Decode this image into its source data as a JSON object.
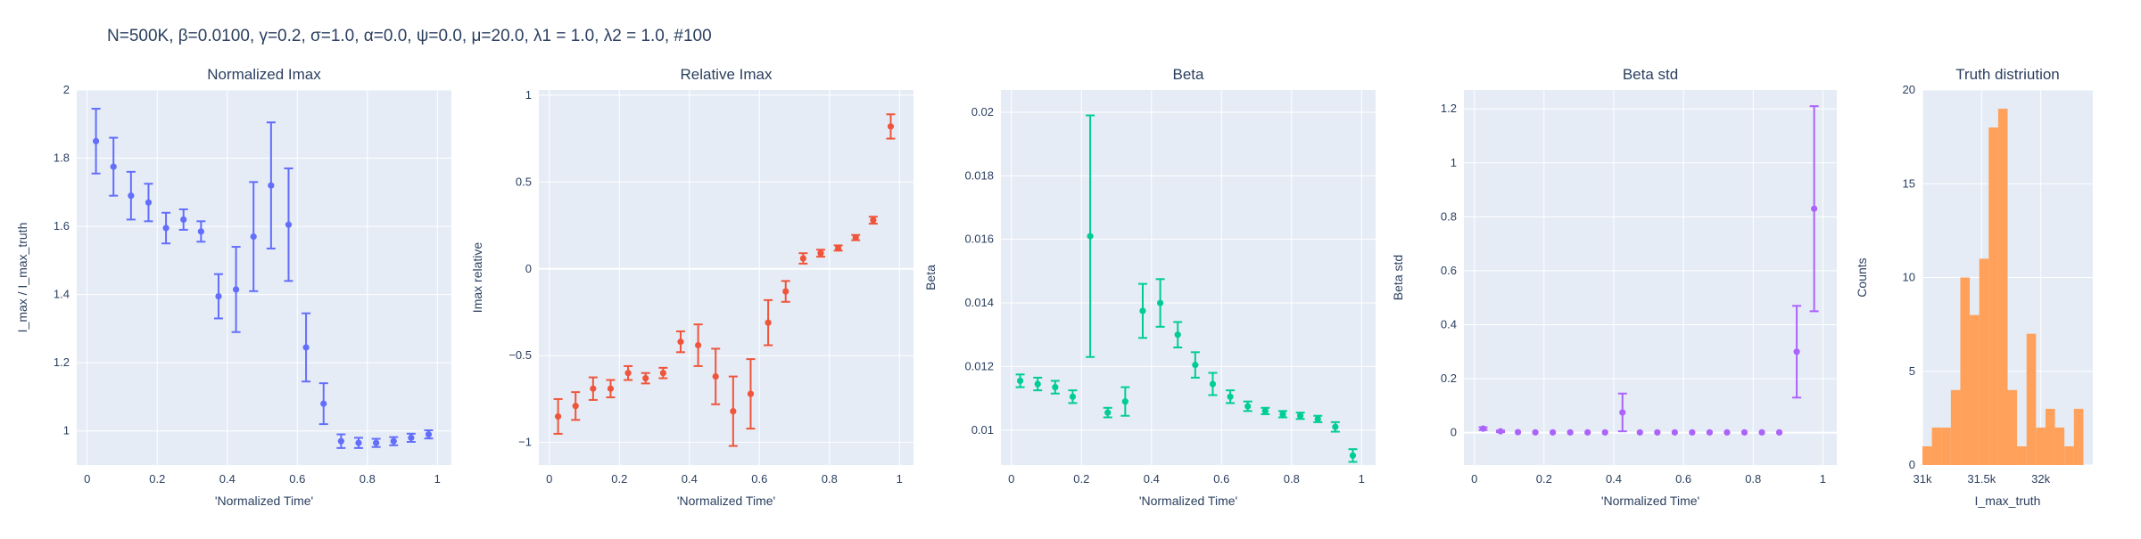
{
  "page": {
    "title": "N=500K, β=0.0100, γ=0.2, σ=1.0,  α=0.0, ψ=0.0, μ=20.0, λ1 = 1.0, λ2 = 1.0, #100"
  },
  "style": {
    "plot_bg": "#E5ECF6",
    "grid": "#ffffff",
    "text": "#2a3f5f",
    "colors": [
      "#636EFA",
      "#EF553B",
      "#00CC96",
      "#AB63FA",
      "#FFA15A"
    ]
  },
  "chart_data": [
    {
      "type": "scatter",
      "title": "Normalized Imax",
      "xlabel": "'Normalized Time'",
      "ylabel": "I_max / I_max_truth",
      "xlim": [
        -0.03,
        1.04
      ],
      "ylim": [
        0.9,
        2.0
      ],
      "xticks": [
        0,
        0.2,
        0.4,
        0.6,
        0.8,
        1
      ],
      "xtick_labels": [
        "0",
        "0.2",
        "0.4",
        "0.6",
        "0.8",
        "1"
      ],
      "yticks": [
        1,
        1.2,
        1.4,
        1.6,
        1.8,
        2
      ],
      "ytick_labels": [
        "1",
        "1.2",
        "1.4",
        "1.6",
        "1.8",
        "2"
      ],
      "series": [
        {
          "x": [
            0.025,
            0.075,
            0.125,
            0.175,
            0.225,
            0.275,
            0.325,
            0.375,
            0.425,
            0.475,
            0.525,
            0.575,
            0.625,
            0.675,
            0.725,
            0.775,
            0.825,
            0.875,
            0.925,
            0.975
          ],
          "y": [
            1.85,
            1.775,
            1.69,
            1.67,
            1.595,
            1.62,
            1.585,
            1.395,
            1.415,
            1.57,
            1.72,
            1.605,
            1.245,
            1.08,
            0.97,
            0.965,
            0.965,
            0.97,
            0.98,
            0.99
          ],
          "err": [
            0.095,
            0.085,
            0.07,
            0.055,
            0.045,
            0.03,
            0.03,
            0.065,
            0.125,
            0.16,
            0.185,
            0.165,
            0.1,
            0.06,
            0.02,
            0.015,
            0.012,
            0.012,
            0.012,
            0.012
          ]
        }
      ]
    },
    {
      "type": "scatter",
      "title": "Relative Imax",
      "xlabel": "'Normalized Time'",
      "ylabel": "Imax relative",
      "xlim": [
        -0.03,
        1.04
      ],
      "ylim": [
        -1.13,
        1.03
      ],
      "xticks": [
        0,
        0.2,
        0.4,
        0.6,
        0.8,
        1
      ],
      "xtick_labels": [
        "0",
        "0.2",
        "0.4",
        "0.6",
        "0.8",
        "1"
      ],
      "yticks": [
        -1,
        -0.5,
        0,
        0.5,
        1
      ],
      "ytick_labels": [
        "−1",
        "−0.5",
        "0",
        "0.5",
        "1"
      ],
      "series": [
        {
          "x": [
            0.025,
            0.075,
            0.125,
            0.175,
            0.225,
            0.275,
            0.325,
            0.375,
            0.425,
            0.475,
            0.525,
            0.575,
            0.625,
            0.675,
            0.725,
            0.775,
            0.825,
            0.875,
            0.925,
            0.975
          ],
          "y": [
            -0.85,
            -0.79,
            -0.69,
            -0.69,
            -0.6,
            -0.63,
            -0.6,
            -0.42,
            -0.44,
            -0.62,
            -0.82,
            -0.72,
            -0.31,
            -0.13,
            0.06,
            0.09,
            0.12,
            0.18,
            0.28,
            0.82
          ],
          "err": [
            0.1,
            0.08,
            0.065,
            0.05,
            0.04,
            0.03,
            0.03,
            0.06,
            0.12,
            0.16,
            0.2,
            0.2,
            0.13,
            0.06,
            0.03,
            0.02,
            0.015,
            0.015,
            0.02,
            0.07
          ]
        }
      ]
    },
    {
      "type": "scatter",
      "title": "Beta",
      "xlabel": "'Normalized Time'",
      "ylabel": "Beta",
      "xlim": [
        -0.03,
        1.04
      ],
      "ylim": [
        0.0089,
        0.0207
      ],
      "xticks": [
        0,
        0.2,
        0.4,
        0.6,
        0.8,
        1
      ],
      "xtick_labels": [
        "0",
        "0.2",
        "0.4",
        "0.6",
        "0.8",
        "1"
      ],
      "yticks": [
        0.01,
        0.012,
        0.014,
        0.016,
        0.018,
        0.02
      ],
      "ytick_labels": [
        "0.01",
        "0.012",
        "0.014",
        "0.016",
        "0.018",
        "0.02"
      ],
      "series": [
        {
          "x": [
            0.025,
            0.075,
            0.125,
            0.175,
            0.225,
            0.275,
            0.325,
            0.375,
            0.425,
            0.475,
            0.525,
            0.575,
            0.625,
            0.675,
            0.725,
            0.775,
            0.825,
            0.875,
            0.925,
            0.975
          ],
          "y": [
            0.01155,
            0.01145,
            0.01135,
            0.01105,
            0.0161,
            0.01055,
            0.0109,
            0.01375,
            0.014,
            0.013,
            0.01205,
            0.01145,
            0.01105,
            0.01075,
            0.0106,
            0.0105,
            0.01045,
            0.01035,
            0.0101,
            0.0092
          ],
          "err": [
            0.0002,
            0.0002,
            0.0002,
            0.0002,
            0.0038,
            0.00015,
            0.00045,
            0.00085,
            0.00075,
            0.0004,
            0.0004,
            0.00035,
            0.0002,
            0.00015,
            0.0001,
            0.0001,
            0.0001,
            0.0001,
            0.00015,
            0.0002
          ]
        }
      ]
    },
    {
      "type": "scatter",
      "title": "Beta std",
      "xlabel": "'Normalized Time'",
      "ylabel": "Beta std",
      "xlim": [
        -0.03,
        1.04
      ],
      "ylim": [
        -0.12,
        1.27
      ],
      "xticks": [
        0,
        0.2,
        0.4,
        0.6,
        0.8,
        1
      ],
      "xtick_labels": [
        "0",
        "0.2",
        "0.4",
        "0.6",
        "0.8",
        "1"
      ],
      "yticks": [
        0,
        0.2,
        0.4,
        0.6,
        0.8,
        1,
        1.2
      ],
      "ytick_labels": [
        "0",
        "0.2",
        "0.4",
        "0.6",
        "0.8",
        "1",
        "1.2"
      ],
      "series": [
        {
          "x": [
            0.025,
            0.075,
            0.125,
            0.175,
            0.225,
            0.275,
            0.325,
            0.375,
            0.425,
            0.475,
            0.525,
            0.575,
            0.625,
            0.675,
            0.725,
            0.775,
            0.825,
            0.875,
            0.925,
            0.975
          ],
          "y": [
            0.015,
            0.005,
            0.002,
            0.001,
            0.001,
            0.001,
            0.001,
            0.001,
            0.075,
            0.001,
            0.001,
            0.001,
            0.001,
            0.001,
            0.001,
            0.001,
            0.001,
            0.001,
            0.3,
            0.83
          ],
          "err": [
            0.005,
            0.003,
            0.0,
            0.0,
            0.0,
            0.0,
            0.0,
            0.0,
            0.07,
            0.0,
            0.0,
            0.0,
            0.0,
            0.0,
            0.0,
            0.0,
            0.0,
            0.0,
            0.17,
            0.38
          ]
        }
      ]
    },
    {
      "type": "bar",
      "title": "Truth distriution",
      "xlabel": "I_max_truth",
      "ylabel": "Counts",
      "xlim": [
        31000,
        32440
      ],
      "ylim": [
        0,
        20
      ],
      "xticks": [
        31000,
        31500,
        32000
      ],
      "xtick_labels": [
        "31k",
        "31.5k",
        "32k"
      ],
      "yticks": [
        0,
        5,
        10,
        15,
        20
      ],
      "ytick_labels": [
        "0",
        "5",
        "10",
        "15",
        "20"
      ],
      "bin_edges": [
        31000,
        31080,
        31160,
        31240,
        31320,
        31400,
        31480,
        31560,
        31640,
        31720,
        31800,
        31880,
        31960,
        32040,
        32120,
        32200,
        32280,
        32360,
        32440
      ],
      "counts": [
        1,
        2,
        2,
        4,
        10,
        8,
        11,
        18,
        19,
        4,
        1,
        7,
        2,
        3,
        2,
        1,
        3,
        0
      ]
    }
  ]
}
